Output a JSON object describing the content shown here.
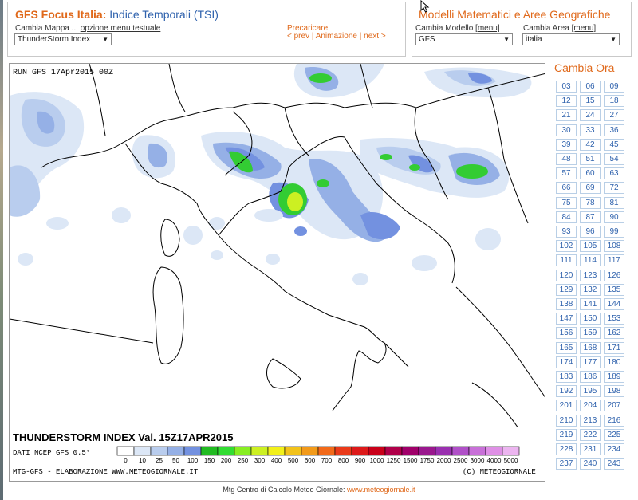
{
  "left_panel": {
    "title_brand": "GFS Focus Italia:",
    "title_product": "Indice Temporali (TSI)",
    "cambia_mappa": "Cambia Mappa ...",
    "opzione_menu": "opzione menu testuale",
    "map_select": "ThunderStorm Index",
    "precaricare": "Precaricare",
    "nav_prev": "< prev",
    "nav_anim": "Animazione",
    "nav_next": "next >",
    "sep": "|"
  },
  "right_panel": {
    "title": "Modelli Matematici e Aree Geografiche",
    "modello_label": "Cambia Modello",
    "modello_menu": "[menu]",
    "modello_value": "GFS",
    "area_label": "Cambia Area",
    "area_menu": "[menu]",
    "area_value": "italia"
  },
  "map": {
    "run_label": "RUN GFS 17Apr2015 00Z",
    "index_title": "THUNDERSTORM INDEX Val. 15Z17APR2015",
    "source": "DATI NCEP GFS 0.5°",
    "credit_left": "MTG-GFS - ELABORAZIONE WWW.METEOGIORNALE.IT",
    "credit_right": "(C) METEOGIORNALE",
    "legend_values": [
      "0",
      "10",
      "25",
      "50",
      "100",
      "150",
      "200",
      "250",
      "300",
      "400",
      "500",
      "600",
      "700",
      "800",
      "900",
      "1000",
      "1250",
      "1500",
      "1750",
      "2000",
      "2500",
      "3000",
      "4000",
      "5000"
    ],
    "legend_colors": [
      "#ffffff",
      "#dce7f6",
      "#b9cdee",
      "#95b0e6",
      "#7391e0",
      "#22bb22",
      "#33dd33",
      "#88ee22",
      "#ccf022",
      "#f2f01a",
      "#f2c21a",
      "#f29a1a",
      "#f26a1a",
      "#ea3a1a",
      "#dd1a1a",
      "#c9001a",
      "#b0004a",
      "#a0006a",
      "#9a188e",
      "#9a30b0",
      "#b050c8",
      "#c870d8",
      "#df90e6",
      "#ecb5f0"
    ]
  },
  "hours": {
    "title": "Cambia Ora",
    "values": [
      "03",
      "06",
      "09",
      "12",
      "15",
      "18",
      "21",
      "24",
      "27",
      "30",
      "33",
      "36",
      "39",
      "42",
      "45",
      "48",
      "51",
      "54",
      "57",
      "60",
      "63",
      "66",
      "69",
      "72",
      "75",
      "78",
      "81",
      "84",
      "87",
      "90",
      "93",
      "96",
      "99",
      "102",
      "105",
      "108",
      "111",
      "114",
      "117",
      "120",
      "123",
      "126",
      "129",
      "132",
      "135",
      "138",
      "141",
      "144",
      "147",
      "150",
      "153",
      "156",
      "159",
      "162",
      "165",
      "168",
      "171",
      "174",
      "177",
      "180",
      "183",
      "186",
      "189",
      "192",
      "195",
      "198",
      "201",
      "204",
      "207",
      "210",
      "213",
      "216",
      "219",
      "222",
      "225",
      "228",
      "231",
      "234",
      "237",
      "240",
      "243"
    ]
  },
  "footer": {
    "text": "Mtg Centro di Calcolo Meteo Giornale:",
    "link": "www.meteogiornale.it"
  }
}
